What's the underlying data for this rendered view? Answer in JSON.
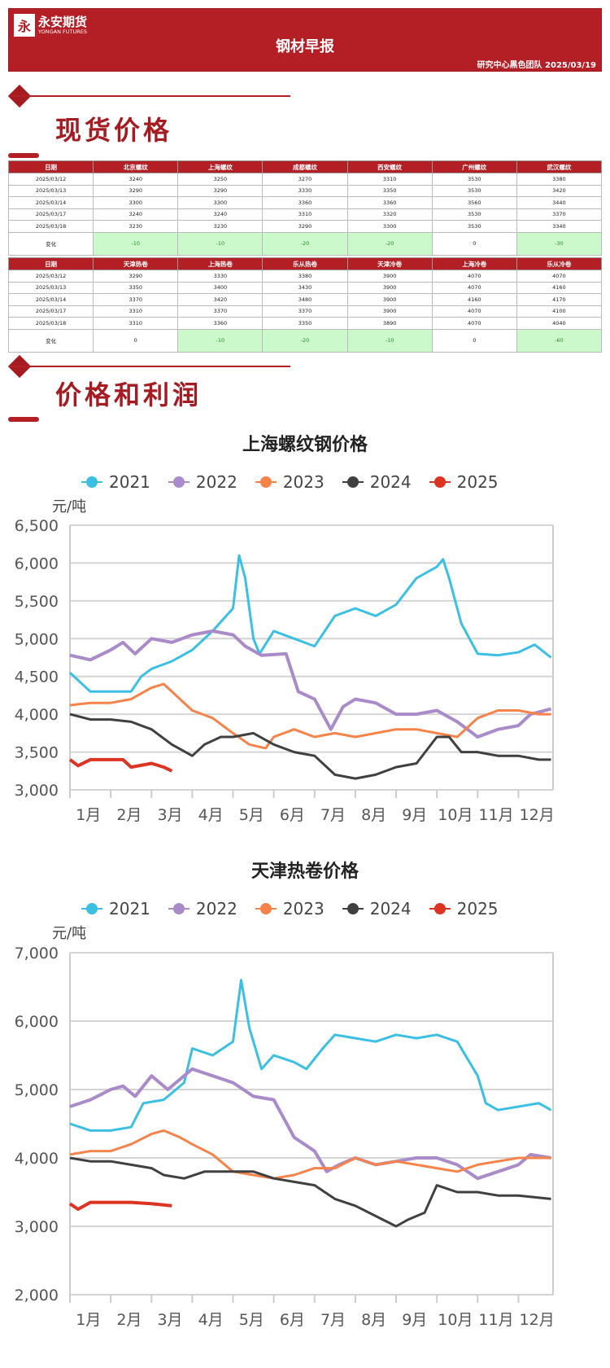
{
  "header": {
    "logo_cn": "永安期货",
    "logo_en": "YONGAN FUTURES",
    "logo_mark": "永",
    "title": "钢材早报",
    "subtitle": "研究中心黑色团队  2025/03/19"
  },
  "sections": {
    "spot": "现货价格",
    "profit": "价格和利润"
  },
  "table1": {
    "headers": [
      "日期",
      "北京螺纹",
      "上海螺纹",
      "成都螺纹",
      "西安螺纹",
      "广州螺纹",
      "武汉螺纹"
    ],
    "rows": [
      [
        "2025/03/12",
        "3240",
        "3250",
        "3270",
        "3310",
        "3530",
        "3380"
      ],
      [
        "2025/03/13",
        "3290",
        "3290",
        "3330",
        "3350",
        "3530",
        "3420"
      ],
      [
        "2025/03/14",
        "3300",
        "3300",
        "3360",
        "3360",
        "3560",
        "3440"
      ],
      [
        "2025/03/17",
        "3240",
        "3240",
        "3310",
        "3320",
        "3530",
        "3370"
      ],
      [
        "2025/03/18",
        "3230",
        "3230",
        "3290",
        "3300",
        "3530",
        "3340"
      ]
    ],
    "change": [
      "变化",
      "-10",
      "-10",
      "-20",
      "-20",
      "0",
      "-30"
    ]
  },
  "table2": {
    "headers": [
      "日期",
      "天津热卷",
      "上海热卷",
      "乐从热卷",
      "天津冷卷",
      "上海冷卷",
      "乐从冷卷"
    ],
    "rows": [
      [
        "2025/03/12",
        "3290",
        "3330",
        "3380",
        "3900",
        "4070",
        "4070"
      ],
      [
        "2025/03/13",
        "3350",
        "3400",
        "3430",
        "3900",
        "4070",
        "4160"
      ],
      [
        "2025/03/14",
        "3370",
        "3420",
        "3480",
        "3900",
        "4160",
        "4170"
      ],
      [
        "2025/03/17",
        "3310",
        "3370",
        "3370",
        "3900",
        "4070",
        "4100"
      ],
      [
        "2025/03/18",
        "3310",
        "3360",
        "3350",
        "3890",
        "4070",
        "4040"
      ]
    ],
    "change": [
      "变化",
      "0",
      "-10",
      "-20",
      "-10",
      "0",
      "-60"
    ]
  },
  "colors": {
    "brand": "#b41e25",
    "change_bg": "#ccf9cc",
    "2021": "#3bbfe2",
    "2022": "#a98bca",
    "2023": "#f5834a",
    "2024": "#404040",
    "2025": "#dd3322"
  },
  "chart_data": [
    {
      "type": "line",
      "title": "上海螺纹钢价格",
      "ylabel": "元/吨",
      "ylim": [
        3000,
        6500
      ],
      "yticks": [
        "3,000",
        "3,500",
        "4,000",
        "4,500",
        "5,000",
        "5,500",
        "6,000",
        "6,500"
      ],
      "ytick_values": [
        3000,
        3500,
        4000,
        4500,
        5000,
        5500,
        6000,
        6500
      ],
      "categories": [
        "1月",
        "2月",
        "3月",
        "4月",
        "5月",
        "6月",
        "7月",
        "8月",
        "9月",
        "10月",
        "11月",
        "12月"
      ],
      "grid": true,
      "legend": "top",
      "series": [
        {
          "name": "2021",
          "x": [
            1,
            1.5,
            2,
            2.5,
            2.75,
            3,
            3.5,
            4,
            4.5,
            5,
            5.15,
            5.3,
            5.5,
            5.65,
            6,
            6.5,
            7,
            7.5,
            8,
            8.5,
            9,
            9.5,
            10,
            10.15,
            10.3,
            10.6,
            11,
            11.5,
            12,
            12.4,
            12.8
          ],
          "y": [
            4550,
            4300,
            4300,
            4300,
            4500,
            4600,
            4700,
            4850,
            5100,
            5400,
            6100,
            5800,
            5000,
            4800,
            5100,
            5000,
            4900,
            5300,
            5400,
            5300,
            5450,
            5800,
            5950,
            6050,
            5800,
            5200,
            4800,
            4780,
            4820,
            4920,
            4750
          ]
        },
        {
          "name": "2022",
          "x": [
            1,
            1.5,
            2,
            2.3,
            2.6,
            3,
            3.5,
            4,
            4.5,
            5,
            5.3,
            5.7,
            6.3,
            6.6,
            7,
            7.4,
            7.7,
            8,
            8.5,
            9,
            9.5,
            10,
            10.5,
            11,
            11.5,
            12,
            12.3,
            12.8
          ],
          "y": [
            4780,
            4720,
            4850,
            4950,
            4800,
            5000,
            4950,
            5050,
            5100,
            5050,
            4900,
            4780,
            4800,
            4300,
            4200,
            3800,
            4100,
            4200,
            4150,
            4000,
            4000,
            4050,
            3900,
            3700,
            3800,
            3850,
            4000,
            4070
          ]
        },
        {
          "name": "2023",
          "x": [
            1,
            1.5,
            2,
            2.5,
            3,
            3.3,
            3.6,
            4,
            4.5,
            5,
            5.4,
            5.8,
            6,
            6.5,
            7,
            7.5,
            8,
            8.5,
            9,
            9.5,
            10,
            10.5,
            11,
            11.5,
            12,
            12.5,
            12.8
          ],
          "y": [
            4120,
            4150,
            4150,
            4200,
            4350,
            4400,
            4250,
            4050,
            3950,
            3750,
            3600,
            3550,
            3700,
            3800,
            3700,
            3750,
            3700,
            3750,
            3800,
            3800,
            3750,
            3700,
            3950,
            4050,
            4050,
            4000,
            4000
          ]
        },
        {
          "name": "2024",
          "x": [
            1,
            1.5,
            2,
            2.5,
            3,
            3.5,
            4,
            4.3,
            4.7,
            5,
            5.5,
            6,
            6.5,
            7,
            7.5,
            8,
            8.5,
            9,
            9.5,
            10,
            10.3,
            10.6,
            11,
            11.5,
            12,
            12.5,
            12.8
          ],
          "y": [
            4000,
            3930,
            3930,
            3900,
            3800,
            3600,
            3450,
            3600,
            3700,
            3700,
            3750,
            3600,
            3500,
            3450,
            3200,
            3150,
            3200,
            3300,
            3350,
            3700,
            3700,
            3500,
            3500,
            3450,
            3450,
            3400,
            3400
          ]
        },
        {
          "name": "2025",
          "x": [
            1,
            1.2,
            1.5,
            2,
            2.3,
            2.5,
            3,
            3.3,
            3.5
          ],
          "y": [
            3400,
            3320,
            3400,
            3400,
            3400,
            3300,
            3350,
            3300,
            3250
          ]
        }
      ]
    },
    {
      "type": "line",
      "title": "天津热卷价格",
      "ylabel": "元/吨",
      "ylim": [
        2000,
        7000
      ],
      "yticks": [
        "2,000",
        "3,000",
        "4,000",
        "5,000",
        "6,000",
        "7,000"
      ],
      "ytick_values": [
        2000,
        3000,
        4000,
        5000,
        6000,
        7000
      ],
      "categories": [
        "1月",
        "2月",
        "3月",
        "4月",
        "5月",
        "6月",
        "7月",
        "8月",
        "9月",
        "10月",
        "11月",
        "12月"
      ],
      "grid": true,
      "legend": "top",
      "series": [
        {
          "name": "2021",
          "x": [
            1,
            1.5,
            2,
            2.5,
            2.8,
            3.3,
            3.8,
            4,
            4.5,
            5,
            5.2,
            5.4,
            5.7,
            6,
            6.5,
            6.8,
            7.2,
            7.5,
            8,
            8.5,
            9,
            9.5,
            10,
            10.5,
            11,
            11.2,
            11.5,
            12,
            12.5,
            12.8
          ],
          "y": [
            4500,
            4400,
            4400,
            4450,
            4800,
            4850,
            5100,
            5600,
            5500,
            5700,
            6600,
            5900,
            5300,
            5500,
            5400,
            5300,
            5600,
            5800,
            5750,
            5700,
            5800,
            5750,
            5800,
            5700,
            5200,
            4800,
            4700,
            4750,
            4800,
            4700
          ]
        },
        {
          "name": "2022",
          "x": [
            1,
            1.5,
            2,
            2.3,
            2.6,
            3,
            3.4,
            3.8,
            4,
            4.5,
            5,
            5.5,
            6,
            6.5,
            7,
            7.3,
            7.6,
            8,
            8.5,
            9,
            9.5,
            10,
            10.5,
            11,
            11.5,
            12,
            12.3,
            12.8
          ],
          "y": [
            4750,
            4850,
            5000,
            5050,
            4900,
            5200,
            5000,
            5200,
            5300,
            5200,
            5100,
            4900,
            4850,
            4300,
            4100,
            3800,
            3900,
            4000,
            3900,
            3950,
            4000,
            4000,
            3900,
            3700,
            3800,
            3900,
            4050,
            4000
          ]
        },
        {
          "name": "2023",
          "x": [
            1,
            1.5,
            2,
            2.5,
            3,
            3.3,
            3.7,
            4,
            4.5,
            5,
            5.5,
            6,
            6.5,
            7,
            7.5,
            8,
            8.5,
            9,
            9.5,
            10,
            10.5,
            11,
            11.5,
            12,
            12.8
          ],
          "y": [
            4050,
            4100,
            4100,
            4200,
            4350,
            4400,
            4300,
            4200,
            4050,
            3800,
            3750,
            3700,
            3750,
            3850,
            3850,
            4000,
            3900,
            3950,
            3900,
            3850,
            3800,
            3900,
            3950,
            4000,
            4000
          ]
        },
        {
          "name": "2024",
          "x": [
            1,
            1.5,
            2,
            2.5,
            3,
            3.3,
            3.8,
            4.3,
            5,
            5.5,
            6,
            6.5,
            7,
            7.5,
            8,
            8.5,
            9,
            9.3,
            9.7,
            10,
            10.5,
            11,
            11.5,
            12,
            12.8
          ],
          "y": [
            4000,
            3950,
            3950,
            3900,
            3850,
            3750,
            3700,
            3800,
            3800,
            3800,
            3700,
            3650,
            3600,
            3400,
            3300,
            3150,
            3000,
            3100,
            3200,
            3600,
            3500,
            3500,
            3450,
            3450,
            3400
          ]
        },
        {
          "name": "2025",
          "x": [
            1,
            1.2,
            1.5,
            2,
            2.5,
            3,
            3.5
          ],
          "y": [
            3330,
            3250,
            3350,
            3350,
            3350,
            3330,
            3300
          ]
        }
      ]
    }
  ]
}
